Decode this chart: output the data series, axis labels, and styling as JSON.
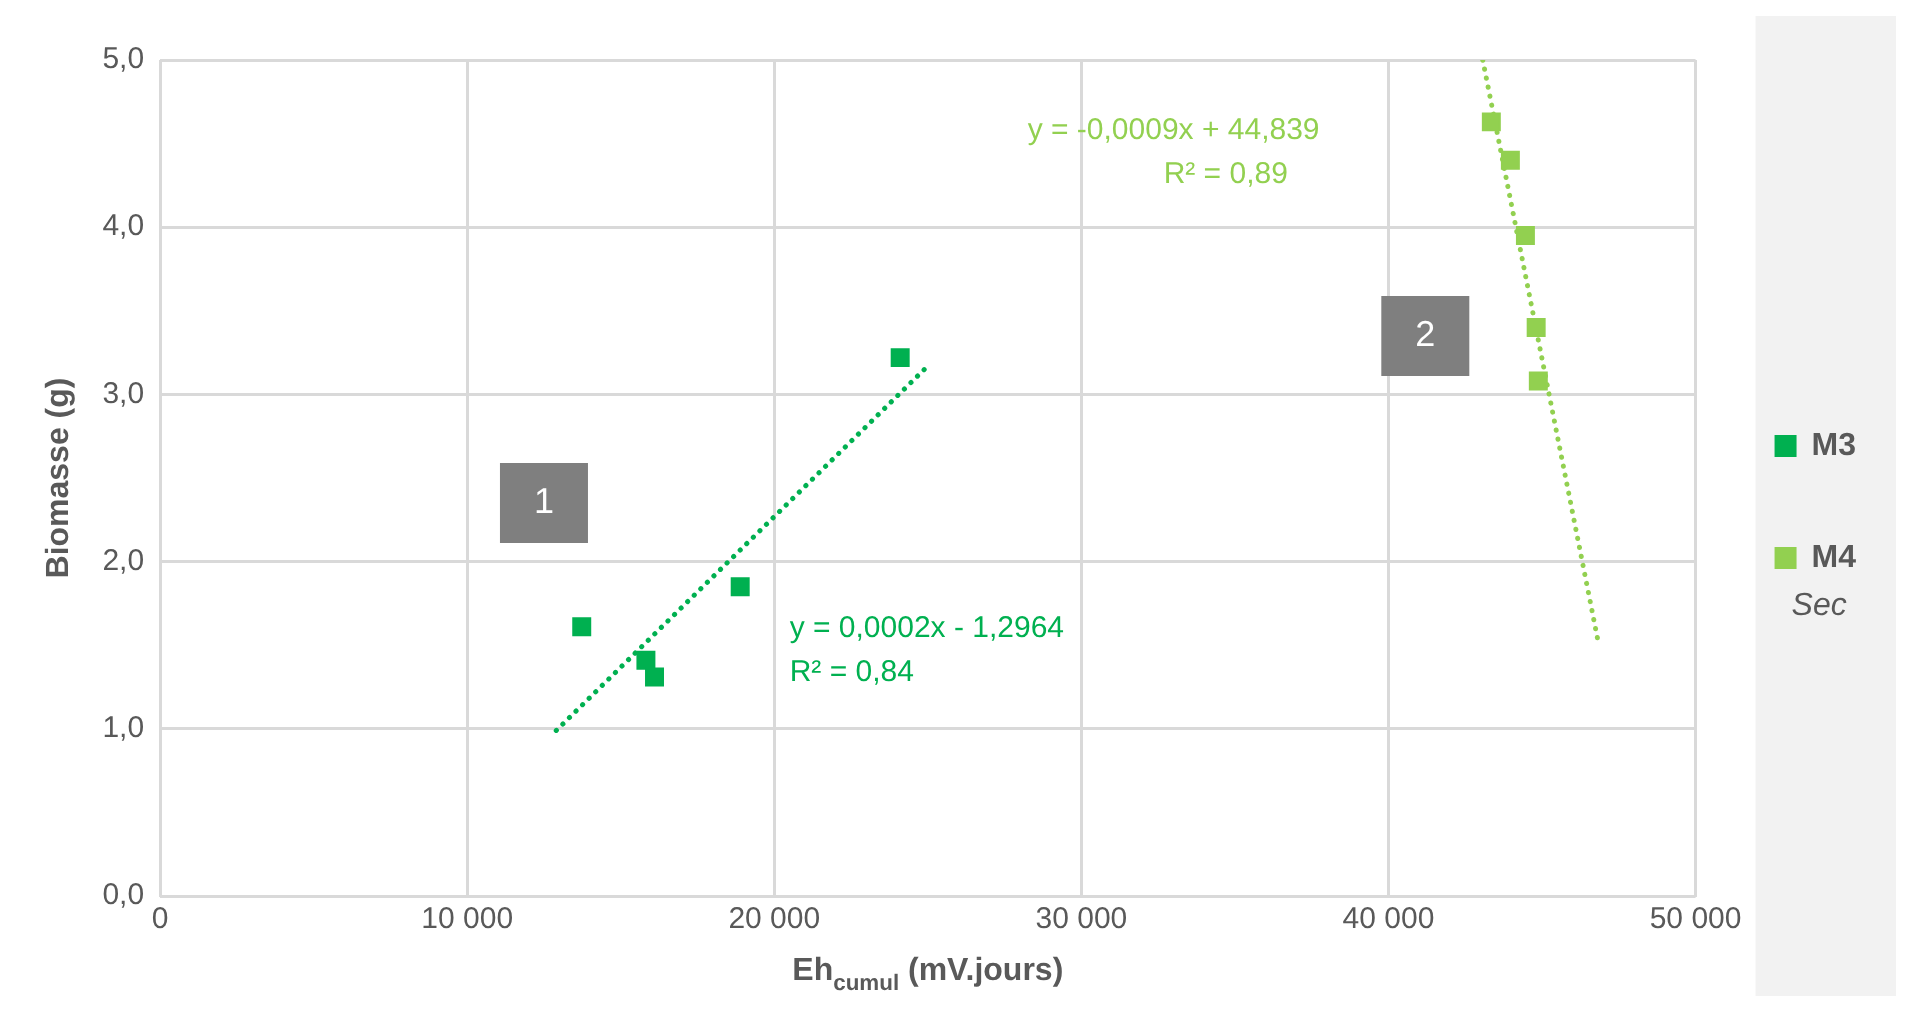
{
  "chart_data": {
    "type": "scatter",
    "xlabel": "Eh$_{cumul}$ (mV.jours)",
    "ylabel": "Biomasse (g)",
    "xlim": [
      0,
      50000
    ],
    "xticks": [
      {
        "value": 0,
        "label": "0"
      },
      {
        "value": 10000,
        "label": "10 000"
      },
      {
        "value": 20000,
        "label": "20 000"
      },
      {
        "value": 30000,
        "label": "30 000"
      },
      {
        "value": 40000,
        "label": "40 000"
      },
      {
        "value": 50000,
        "label": "50 000"
      }
    ],
    "ylim": [
      0,
      5
    ],
    "yticks": [
      {
        "value": 0,
        "label": "0,0"
      },
      {
        "value": 1,
        "label": "1,0"
      },
      {
        "value": 2,
        "label": "2,0"
      },
      {
        "value": 3,
        "label": "3,0"
      },
      {
        "value": 4,
        "label": "4,0"
      },
      {
        "value": 5,
        "label": "5,0"
      }
    ],
    "grid": true,
    "legend": "right",
    "marker": "square",
    "series": [
      {
        "name": "M3",
        "color": "#00b050",
        "x": [
          13730,
          15820,
          16100,
          18890,
          24100
        ],
        "values": [
          1.61,
          1.41,
          1.31,
          1.85,
          3.22
        ]
      },
      {
        "name": "M4",
        "color": "#92d050",
        "x": [
          43350,
          43970,
          44460,
          44810,
          44880
        ],
        "values": [
          4.63,
          4.4,
          3.95,
          3.4,
          3.08
        ]
      },
      {
        "type": "line",
        "color": "#00b050",
        "line_style": "dotted",
        "marker": "none",
        "x": [
          12900,
          25000
        ],
        "values": [
          0.99,
          3.17
        ]
      },
      {
        "type": "line",
        "color": "#92d050",
        "line_style": "dotted",
        "marker": "none",
        "x": [
          43070,
          46830
        ],
        "values": [
          5.0,
          1.52
        ]
      }
    ],
    "annotations": [
      "y = 0,0002x - 1,2964\nR² = 0,84",
      "y = -0,0009x + 44,839\nR² = 0,89",
      "1",
      "2",
      "Sec"
    ]
  }
}
